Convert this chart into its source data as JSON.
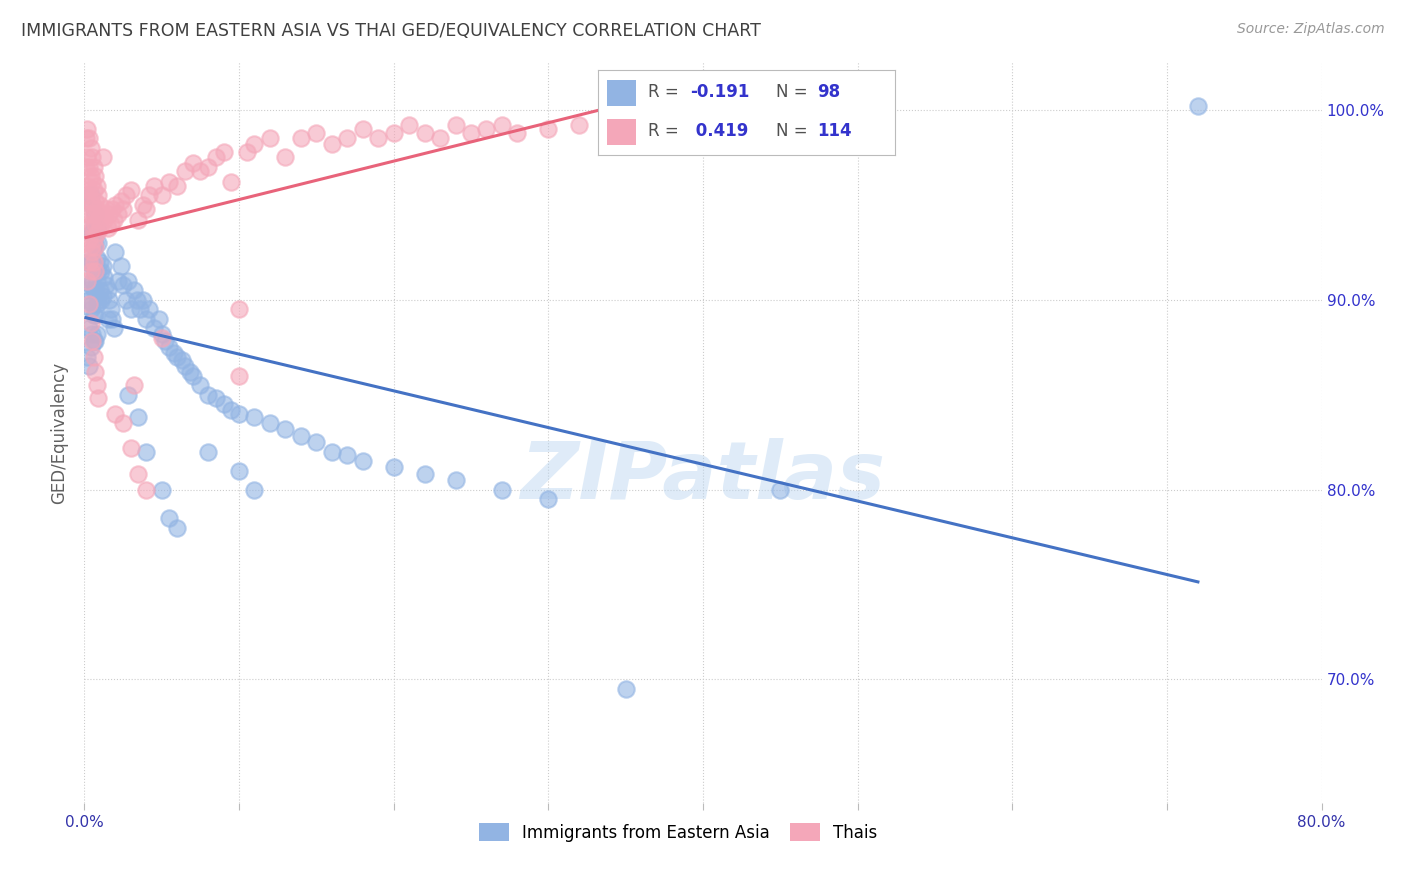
{
  "title": "IMMIGRANTS FROM EASTERN ASIA VS THAI GED/EQUIVALENCY CORRELATION CHART",
  "source": "Source: ZipAtlas.com",
  "ylabel": "GED/Equivalency",
  "ytick_values": [
    0.7,
    0.8,
    0.9,
    1.0
  ],
  "xlim": [
    0.0,
    0.8
  ],
  "ylim": [
    0.635,
    1.025
  ],
  "color_blue": "#92B4E3",
  "color_pink": "#F4A7B9",
  "line_color_blue": "#4472C4",
  "line_color_pink": "#E8637A",
  "legend_text_color": "#3333CC",
  "title_color": "#404040",
  "watermark": "ZIPatlas",
  "blue_points": [
    [
      0.001,
      0.92
    ],
    [
      0.002,
      0.87
    ],
    [
      0.002,
      0.905
    ],
    [
      0.003,
      0.9
    ],
    [
      0.003,
      0.885
    ],
    [
      0.003,
      0.865
    ],
    [
      0.004,
      0.955
    ],
    [
      0.004,
      0.935
    ],
    [
      0.004,
      0.92
    ],
    [
      0.004,
      0.908
    ],
    [
      0.004,
      0.895
    ],
    [
      0.004,
      0.875
    ],
    [
      0.005,
      0.95
    ],
    [
      0.005,
      0.935
    ],
    [
      0.005,
      0.92
    ],
    [
      0.005,
      0.91
    ],
    [
      0.005,
      0.898
    ],
    [
      0.005,
      0.882
    ],
    [
      0.006,
      0.94
    ],
    [
      0.006,
      0.928
    ],
    [
      0.006,
      0.915
    ],
    [
      0.006,
      0.905
    ],
    [
      0.006,
      0.892
    ],
    [
      0.006,
      0.878
    ],
    [
      0.007,
      0.945
    ],
    [
      0.007,
      0.93
    ],
    [
      0.007,
      0.918
    ],
    [
      0.007,
      0.905
    ],
    [
      0.007,
      0.892
    ],
    [
      0.007,
      0.878
    ],
    [
      0.008,
      0.938
    ],
    [
      0.008,
      0.922
    ],
    [
      0.008,
      0.91
    ],
    [
      0.008,
      0.898
    ],
    [
      0.008,
      0.882
    ],
    [
      0.009,
      0.93
    ],
    [
      0.009,
      0.915
    ],
    [
      0.009,
      0.9
    ],
    [
      0.01,
      0.92
    ],
    [
      0.01,
      0.905
    ],
    [
      0.011,
      0.915
    ],
    [
      0.011,
      0.9
    ],
    [
      0.012,
      0.918
    ],
    [
      0.012,
      0.902
    ],
    [
      0.013,
      0.912
    ],
    [
      0.014,
      0.908
    ],
    [
      0.015,
      0.905
    ],
    [
      0.015,
      0.89
    ],
    [
      0.016,
      0.9
    ],
    [
      0.017,
      0.895
    ],
    [
      0.018,
      0.89
    ],
    [
      0.019,
      0.885
    ],
    [
      0.02,
      0.925
    ],
    [
      0.022,
      0.91
    ],
    [
      0.024,
      0.918
    ],
    [
      0.025,
      0.908
    ],
    [
      0.027,
      0.9
    ],
    [
      0.028,
      0.91
    ],
    [
      0.03,
      0.895
    ],
    [
      0.032,
      0.905
    ],
    [
      0.034,
      0.9
    ],
    [
      0.036,
      0.895
    ],
    [
      0.038,
      0.9
    ],
    [
      0.04,
      0.89
    ],
    [
      0.042,
      0.895
    ],
    [
      0.045,
      0.885
    ],
    [
      0.048,
      0.89
    ],
    [
      0.05,
      0.882
    ],
    [
      0.052,
      0.878
    ],
    [
      0.055,
      0.875
    ],
    [
      0.058,
      0.872
    ],
    [
      0.06,
      0.87
    ],
    [
      0.063,
      0.868
    ],
    [
      0.065,
      0.865
    ],
    [
      0.068,
      0.862
    ],
    [
      0.07,
      0.86
    ],
    [
      0.075,
      0.855
    ],
    [
      0.08,
      0.85
    ],
    [
      0.085,
      0.848
    ],
    [
      0.09,
      0.845
    ],
    [
      0.095,
      0.842
    ],
    [
      0.1,
      0.84
    ],
    [
      0.11,
      0.838
    ],
    [
      0.12,
      0.835
    ],
    [
      0.13,
      0.832
    ],
    [
      0.14,
      0.828
    ],
    [
      0.15,
      0.825
    ],
    [
      0.16,
      0.82
    ],
    [
      0.17,
      0.818
    ],
    [
      0.18,
      0.815
    ],
    [
      0.2,
      0.812
    ],
    [
      0.22,
      0.808
    ],
    [
      0.24,
      0.805
    ],
    [
      0.27,
      0.8
    ],
    [
      0.3,
      0.795
    ],
    [
      0.028,
      0.85
    ],
    [
      0.035,
      0.838
    ],
    [
      0.04,
      0.82
    ],
    [
      0.05,
      0.8
    ],
    [
      0.055,
      0.785
    ],
    [
      0.06,
      0.78
    ],
    [
      0.08,
      0.82
    ],
    [
      0.1,
      0.81
    ],
    [
      0.11,
      0.8
    ],
    [
      0.35,
      0.695
    ],
    [
      0.45,
      0.8
    ],
    [
      0.72,
      1.002
    ]
  ],
  "pink_points": [
    [
      0.001,
      0.985
    ],
    [
      0.001,
      0.97
    ],
    [
      0.001,
      0.955
    ],
    [
      0.002,
      0.99
    ],
    [
      0.002,
      0.975
    ],
    [
      0.002,
      0.96
    ],
    [
      0.002,
      0.945
    ],
    [
      0.002,
      0.93
    ],
    [
      0.003,
      0.985
    ],
    [
      0.003,
      0.97
    ],
    [
      0.003,
      0.958
    ],
    [
      0.003,
      0.945
    ],
    [
      0.003,
      0.932
    ],
    [
      0.003,
      0.92
    ],
    [
      0.004,
      0.98
    ],
    [
      0.004,
      0.965
    ],
    [
      0.004,
      0.952
    ],
    [
      0.004,
      0.94
    ],
    [
      0.004,
      0.928
    ],
    [
      0.004,
      0.915
    ],
    [
      0.005,
      0.975
    ],
    [
      0.005,
      0.962
    ],
    [
      0.005,
      0.95
    ],
    [
      0.005,
      0.938
    ],
    [
      0.005,
      0.925
    ],
    [
      0.006,
      0.97
    ],
    [
      0.006,
      0.958
    ],
    [
      0.006,
      0.945
    ],
    [
      0.006,
      0.932
    ],
    [
      0.006,
      0.92
    ],
    [
      0.007,
      0.965
    ],
    [
      0.007,
      0.952
    ],
    [
      0.007,
      0.94
    ],
    [
      0.007,
      0.928
    ],
    [
      0.007,
      0.915
    ],
    [
      0.008,
      0.96
    ],
    [
      0.008,
      0.948
    ],
    [
      0.008,
      0.935
    ],
    [
      0.009,
      0.955
    ],
    [
      0.009,
      0.942
    ],
    [
      0.01,
      0.95
    ],
    [
      0.01,
      0.938
    ],
    [
      0.011,
      0.945
    ],
    [
      0.012,
      0.975
    ],
    [
      0.013,
      0.942
    ],
    [
      0.014,
      0.948
    ],
    [
      0.015,
      0.938
    ],
    [
      0.016,
      0.945
    ],
    [
      0.017,
      0.94
    ],
    [
      0.018,
      0.948
    ],
    [
      0.019,
      0.942
    ],
    [
      0.02,
      0.95
    ],
    [
      0.022,
      0.945
    ],
    [
      0.024,
      0.952
    ],
    [
      0.025,
      0.948
    ],
    [
      0.027,
      0.955
    ],
    [
      0.03,
      0.958
    ],
    [
      0.032,
      0.855
    ],
    [
      0.035,
      0.942
    ],
    [
      0.038,
      0.95
    ],
    [
      0.04,
      0.948
    ],
    [
      0.042,
      0.955
    ],
    [
      0.045,
      0.96
    ],
    [
      0.05,
      0.955
    ],
    [
      0.055,
      0.962
    ],
    [
      0.06,
      0.96
    ],
    [
      0.065,
      0.968
    ],
    [
      0.07,
      0.972
    ],
    [
      0.075,
      0.968
    ],
    [
      0.08,
      0.97
    ],
    [
      0.085,
      0.975
    ],
    [
      0.09,
      0.978
    ],
    [
      0.095,
      0.962
    ],
    [
      0.1,
      0.895
    ],
    [
      0.105,
      0.978
    ],
    [
      0.11,
      0.982
    ],
    [
      0.12,
      0.985
    ],
    [
      0.13,
      0.975
    ],
    [
      0.14,
      0.985
    ],
    [
      0.15,
      0.988
    ],
    [
      0.16,
      0.982
    ],
    [
      0.17,
      0.985
    ],
    [
      0.18,
      0.99
    ],
    [
      0.19,
      0.985
    ],
    [
      0.2,
      0.988
    ],
    [
      0.21,
      0.992
    ],
    [
      0.22,
      0.988
    ],
    [
      0.23,
      0.985
    ],
    [
      0.24,
      0.992
    ],
    [
      0.25,
      0.988
    ],
    [
      0.26,
      0.99
    ],
    [
      0.27,
      0.992
    ],
    [
      0.28,
      0.988
    ],
    [
      0.3,
      0.99
    ],
    [
      0.32,
      0.992
    ],
    [
      0.35,
      0.995
    ],
    [
      0.38,
      0.992
    ],
    [
      0.4,
      0.995
    ],
    [
      0.42,
      0.998
    ],
    [
      0.002,
      0.91
    ],
    [
      0.003,
      0.898
    ],
    [
      0.004,
      0.888
    ],
    [
      0.005,
      0.878
    ],
    [
      0.006,
      0.87
    ],
    [
      0.007,
      0.862
    ],
    [
      0.008,
      0.855
    ],
    [
      0.009,
      0.848
    ],
    [
      0.02,
      0.84
    ],
    [
      0.025,
      0.835
    ],
    [
      0.03,
      0.822
    ],
    [
      0.035,
      0.808
    ],
    [
      0.04,
      0.8
    ],
    [
      0.05,
      0.88
    ],
    [
      0.1,
      0.86
    ]
  ]
}
